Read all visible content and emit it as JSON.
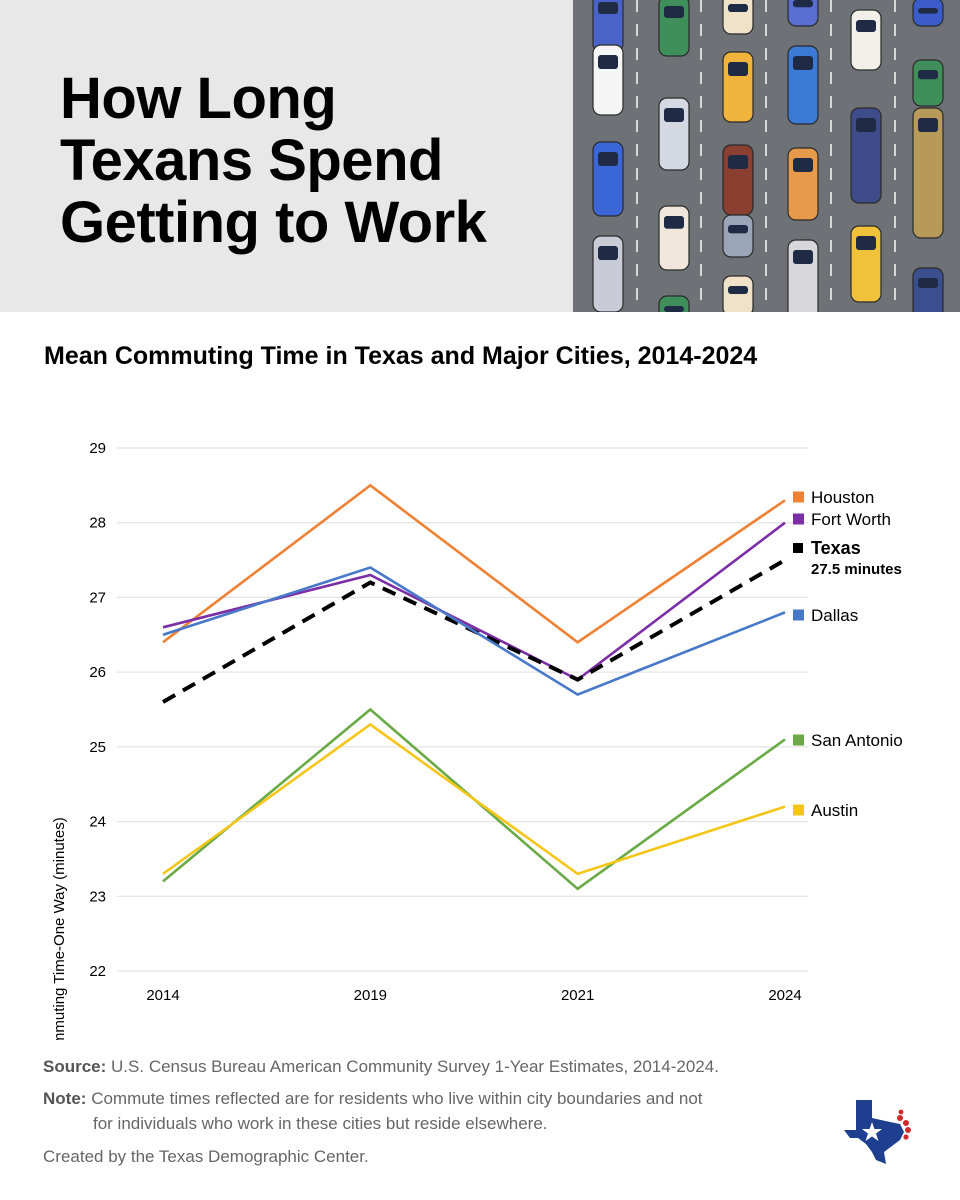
{
  "header": {
    "title_lines": [
      "How Long",
      "Texans Spend",
      "Getting to Work"
    ]
  },
  "chart_data": {
    "type": "line",
    "title": "Mean Commuting Time in Texas and Major Cities, 2014-2024",
    "ylabel": "Mean Commuting Time-One Way (minutes)",
    "xlabel": "",
    "categories": [
      "2014",
      "2019",
      "2021",
      "2024"
    ],
    "ylim": [
      22,
      29
    ],
    "yticks": [
      22,
      23,
      24,
      25,
      26,
      27,
      28,
      29
    ],
    "grid": true,
    "legend_placement": "right, at line ends",
    "series": [
      {
        "name": "Houston",
        "values": [
          26.4,
          28.5,
          26.4,
          28.3
        ],
        "color": "#ee8133",
        "dashed": false
      },
      {
        "name": "Fort Worth",
        "values": [
          26.6,
          27.3,
          25.9,
          28.0
        ],
        "color": "#7c2ea6",
        "dashed": false
      },
      {
        "name": "Texas",
        "values": [
          25.6,
          27.2,
          25.9,
          27.5
        ],
        "color": "#000000",
        "dashed": true,
        "label_note": "27.5 minutes"
      },
      {
        "name": "Dallas",
        "values": [
          26.5,
          27.4,
          25.7,
          26.8
        ],
        "color": "#4878c9",
        "dashed": false
      },
      {
        "name": "San Antonio",
        "values": [
          23.2,
          25.5,
          23.1,
          25.1
        ],
        "color": "#6aaa46",
        "dashed": false
      },
      {
        "name": "Austin",
        "values": [
          23.3,
          25.3,
          23.3,
          24.2
        ],
        "color": "#f5c518",
        "dashed": false
      }
    ]
  },
  "footer": {
    "source_label": "Source:",
    "source_text": "U.S. Census Bureau American Community Survey 1-Year Estimates, 2014-2024.",
    "note_label": "Note:",
    "note_line1": "Commute times reflected are for residents who live within city boundaries and not",
    "note_line2": "for individuals who work in these cities but reside elsewhere.",
    "credit": "Created by the Texas Demographic Center."
  },
  "colors": {
    "header_bg": "#e8e8e8",
    "road": "#6e7175",
    "logo_blue": "#1e3f8f",
    "logo_red": "#d22b2b"
  },
  "icons": {
    "traffic": "traffic-illustration",
    "logo": "texas-demographic-center-logo"
  }
}
